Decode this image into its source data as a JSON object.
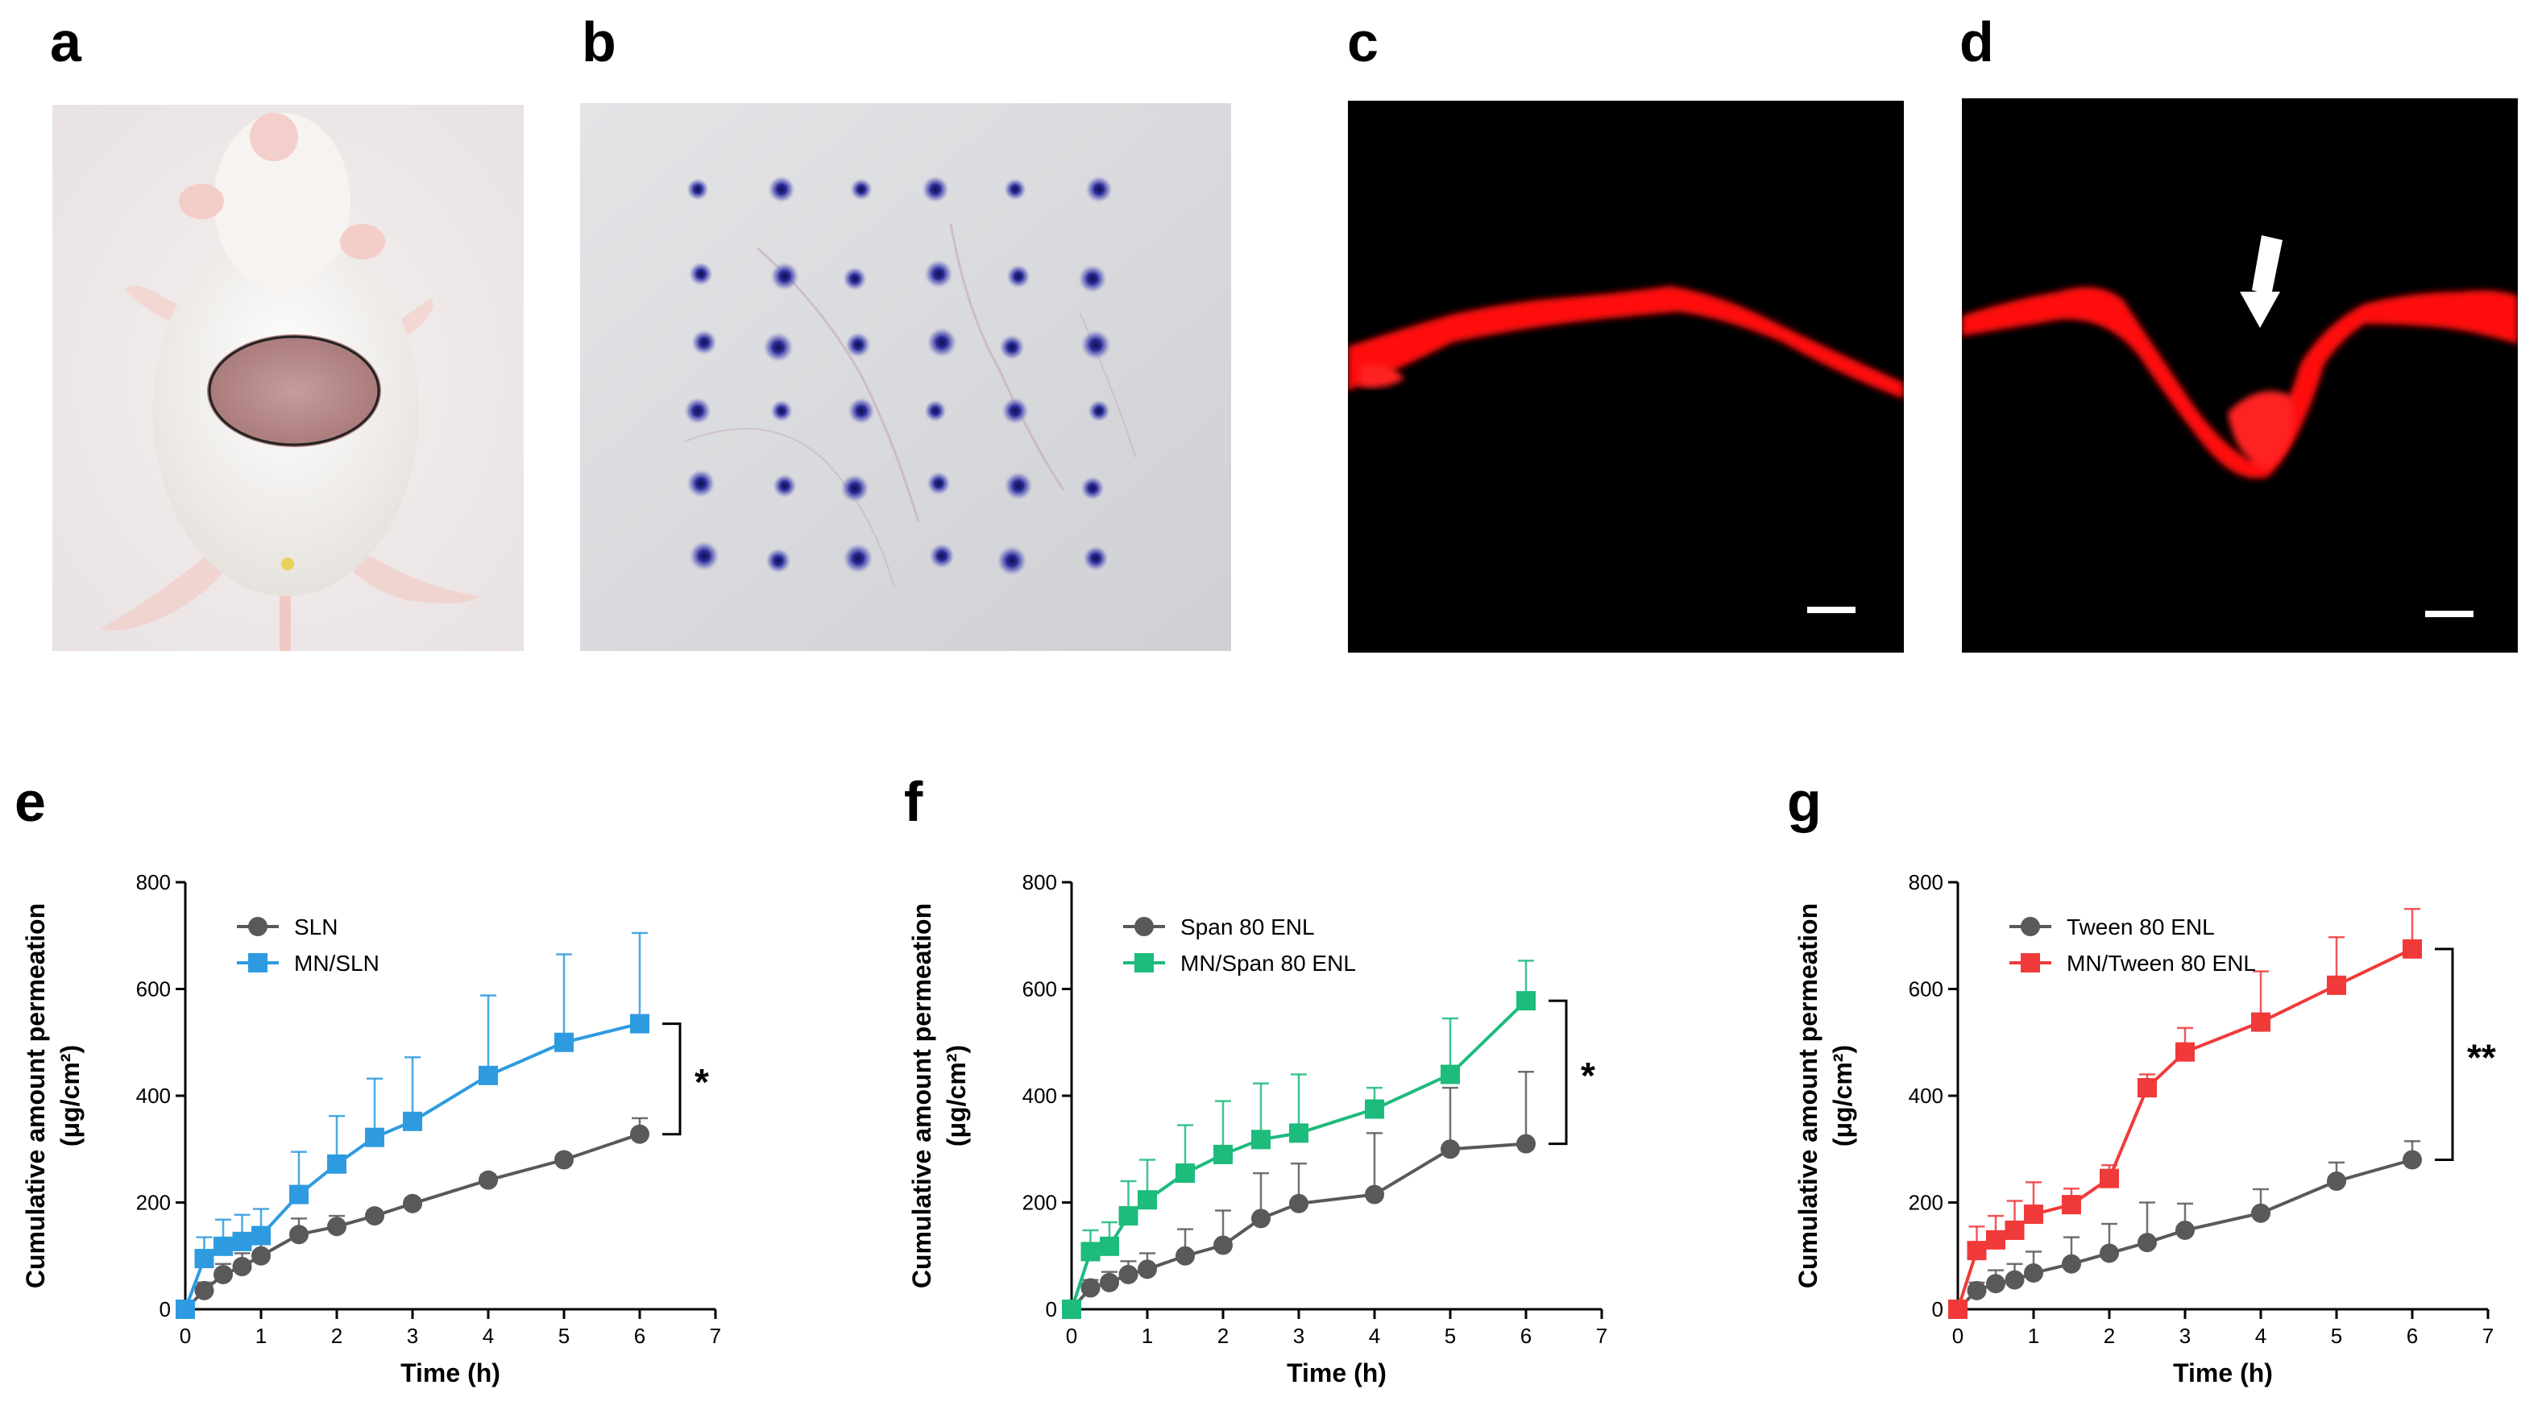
{
  "panels": {
    "a": {
      "letter": "a",
      "description": "mouse"
    },
    "b": {
      "letter": "b"
    },
    "c": {
      "letter": "c"
    },
    "d": {
      "letter": "d"
    },
    "e": {
      "letter": "e"
    },
    "f": {
      "letter": "f"
    },
    "g": {
      "letter": "g"
    }
  },
  "colors": {
    "grey": "#595959",
    "blue": "#2e9be0",
    "green": "#1dbb7c",
    "red": "#f03a3a",
    "fluor": "#ff1010"
  },
  "chart_data": [
    {
      "type": "line",
      "panel": "e",
      "xlabel": "Time (h)",
      "ylabel": "Cumulative amount permeation",
      "ylabel_unit": "(μg/cm²)",
      "xlim": [
        0,
        7
      ],
      "ylim": [
        0,
        800
      ],
      "xticks": [
        0,
        1,
        2,
        3,
        4,
        5,
        6,
        7
      ],
      "yticks": [
        0,
        200,
        400,
        600,
        800
      ],
      "significance": "*",
      "series": [
        {
          "name": "SLN",
          "color": "#595959",
          "marker": "circle",
          "x": [
            0,
            0.25,
            0.5,
            0.75,
            1,
            1.5,
            2,
            2.5,
            3,
            4,
            5,
            6
          ],
          "y": [
            0,
            35,
            65,
            80,
            100,
            140,
            155,
            175,
            198,
            242,
            280,
            328
          ],
          "err": [
            0,
            15,
            20,
            25,
            25,
            30,
            20,
            10,
            10,
            10,
            10,
            30
          ]
        },
        {
          "name": "MN/SLN",
          "color": "#2e9be0",
          "marker": "square",
          "x": [
            0,
            0.25,
            0.5,
            0.75,
            1,
            1.5,
            2,
            2.5,
            3,
            4,
            5,
            6
          ],
          "y": [
            0,
            95,
            118,
            127,
            138,
            215,
            272,
            322,
            352,
            438,
            500,
            535
          ],
          "err": [
            0,
            40,
            50,
            50,
            50,
            80,
            90,
            110,
            120,
            150,
            165,
            170
          ]
        }
      ]
    },
    {
      "type": "line",
      "panel": "f",
      "xlabel": "Time (h)",
      "ylabel": "Cumulative amount permeation",
      "ylabel_unit": "(μg/cm²)",
      "xlim": [
        0,
        7
      ],
      "ylim": [
        0,
        800
      ],
      "xticks": [
        0,
        1,
        2,
        3,
        4,
        5,
        6,
        7
      ],
      "yticks": [
        0,
        200,
        400,
        600,
        800
      ],
      "significance": "*",
      "series": [
        {
          "name": "Span 80 ENL",
          "color": "#595959",
          "marker": "circle",
          "x": [
            0,
            0.25,
            0.5,
            0.75,
            1,
            1.5,
            2,
            2.5,
            3,
            4,
            5,
            6
          ],
          "y": [
            0,
            40,
            50,
            65,
            75,
            100,
            120,
            170,
            198,
            215,
            300,
            310
          ],
          "err": [
            0,
            15,
            20,
            25,
            30,
            50,
            65,
            85,
            75,
            115,
            115,
            135
          ]
        },
        {
          "name": "MN/Span 80 ENL",
          "color": "#1dbb7c",
          "marker": "square",
          "x": [
            0,
            0.25,
            0.5,
            0.75,
            1,
            1.5,
            2,
            2.5,
            3,
            4,
            5,
            6
          ],
          "y": [
            0,
            108,
            118,
            175,
            205,
            255,
            290,
            318,
            330,
            375,
            440,
            578
          ],
          "err": [
            0,
            40,
            45,
            65,
            75,
            90,
            100,
            105,
            110,
            40,
            105,
            75
          ]
        }
      ]
    },
    {
      "type": "line",
      "panel": "g",
      "xlabel": "Time (h)",
      "ylabel": "Cumulative amount permeation",
      "ylabel_unit": "(μg/cm²)",
      "xlim": [
        0,
        7
      ],
      "ylim": [
        0,
        800
      ],
      "xticks": [
        0,
        1,
        2,
        3,
        4,
        5,
        6,
        7
      ],
      "yticks": [
        0,
        200,
        400,
        600,
        800
      ],
      "significance": "**",
      "series": [
        {
          "name": "Tween 80 ENL",
          "color": "#595959",
          "marker": "circle",
          "x": [
            0,
            0.25,
            0.5,
            0.75,
            1,
            1.5,
            2,
            2.5,
            3,
            4,
            5,
            6
          ],
          "y": [
            0,
            35,
            48,
            55,
            68,
            85,
            105,
            125,
            148,
            180,
            240,
            280
          ],
          "err": [
            0,
            15,
            25,
            30,
            40,
            50,
            55,
            75,
            50,
            45,
            35,
            35
          ]
        },
        {
          "name": "MN/Tween 80 ENL",
          "color": "#f03a3a",
          "marker": "square",
          "x": [
            0,
            0.25,
            0.5,
            0.75,
            1,
            1.5,
            2,
            2.5,
            3,
            4,
            5,
            6
          ],
          "y": [
            0,
            110,
            130,
            148,
            178,
            196,
            245,
            415,
            482,
            538,
            607,
            675
          ],
          "err": [
            0,
            45,
            45,
            55,
            60,
            30,
            25,
            25,
            45,
            95,
            90,
            75
          ]
        }
      ]
    }
  ]
}
